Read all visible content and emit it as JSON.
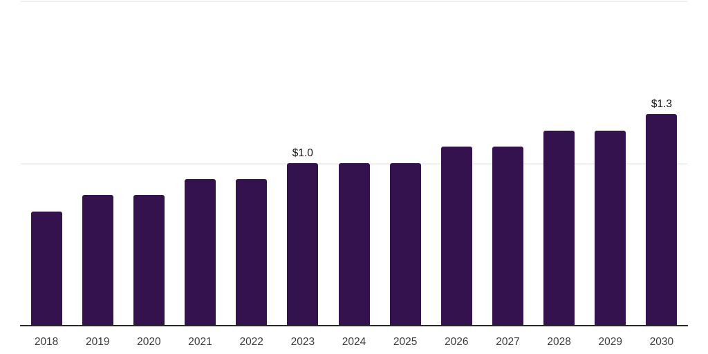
{
  "chart_data": {
    "type": "bar",
    "title": "",
    "xlabel": "",
    "ylabel": "",
    "categories": [
      "2018",
      "2019",
      "2020",
      "2021",
      "2022",
      "2023",
      "2024",
      "2025",
      "2026",
      "2027",
      "2028",
      "2029",
      "2030"
    ],
    "values": [
      0.7,
      0.8,
      0.8,
      0.9,
      0.9,
      1.0,
      1.0,
      1.0,
      1.1,
      1.1,
      1.2,
      1.2,
      1.3
    ],
    "data_labels": [
      "",
      "",
      "",
      "",
      "",
      "$1.0",
      "",
      "",
      "",
      "",
      "",
      "",
      "$1.3"
    ],
    "ylim": [
      0,
      2.0
    ],
    "gridlines_y": [
      1.0,
      2.0
    ],
    "grid": "horizontal-only",
    "legend": "none",
    "bar_color": "#33124e",
    "axis_color": "#262626",
    "gridline_color": "#f0f0f0",
    "tick_label_color": "#3c3c3c",
    "data_label_color": "#131313"
  }
}
